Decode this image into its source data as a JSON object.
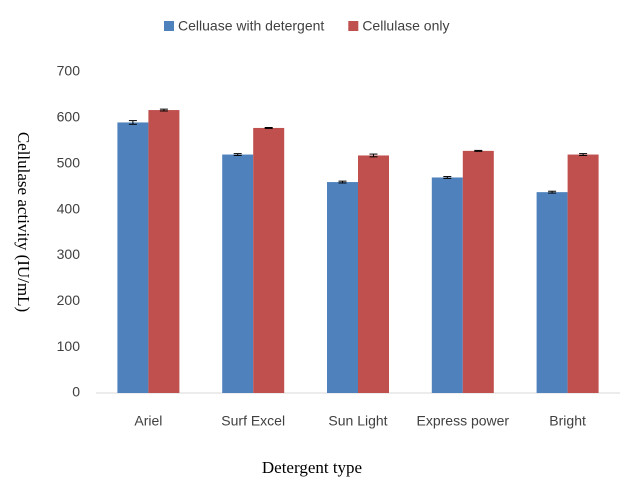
{
  "chart_data": {
    "type": "bar",
    "categories": [
      "Ariel",
      "Surf Excel",
      "Sun Light",
      "Express power",
      "Bright"
    ],
    "series": [
      {
        "name": "Celluase with detergent",
        "color": "#4f81bd",
        "values": [
          590,
          520,
          460,
          470,
          438
        ],
        "errors": [
          4,
          2,
          2,
          2,
          2
        ]
      },
      {
        "name": "Cellulase only",
        "color": "#c0504d",
        "values": [
          617,
          578,
          518,
          528,
          520
        ],
        "errors": [
          2,
          1,
          3,
          1,
          2
        ]
      }
    ],
    "ylim": [
      0,
      700
    ],
    "yticks": [
      0,
      100,
      200,
      300,
      400,
      500,
      600,
      700
    ],
    "ylabel": "Cellulase activity  (IU/mL)",
    "xlabel": "Detergent type",
    "legend": "top",
    "grid": false
  }
}
